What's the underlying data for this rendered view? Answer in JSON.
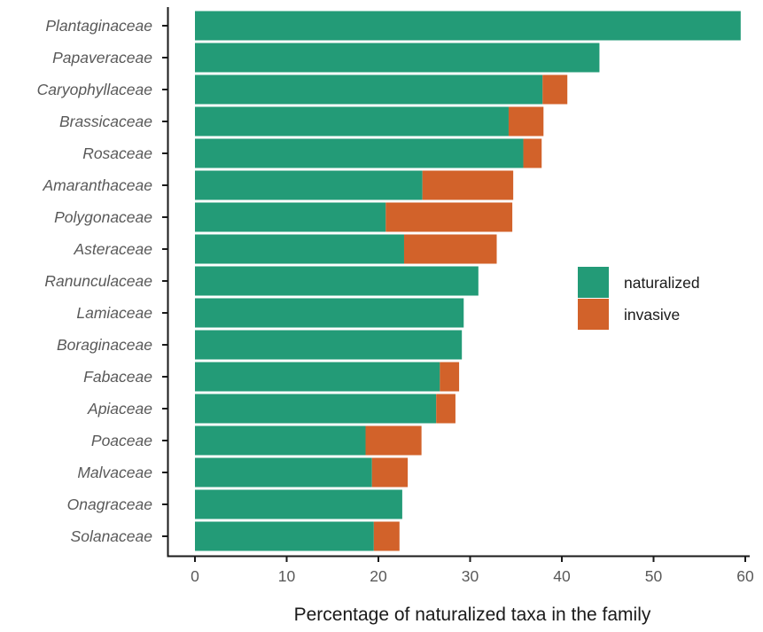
{
  "chart_data": {
    "type": "bar",
    "orientation": "horizontal",
    "stacked": true,
    "categories": [
      "Plantaginaceae",
      "Papaveraceae",
      "Caryophyllaceae",
      "Brassicaceae",
      "Rosaceae",
      "Amaranthaceae",
      "Polygonaceae",
      "Asteraceae",
      "Ranunculaceae",
      "Lamiaceae",
      "Boraginaceae",
      "Fabaceae",
      "Apiaceae",
      "Poaceae",
      "Malvaceae",
      "Onagraceae",
      "Solanaceae"
    ],
    "series": [
      {
        "name": "naturalized",
        "color": "#239b77",
        "values": [
          59.5,
          44.1,
          37.9,
          34.2,
          35.8,
          24.8,
          20.8,
          22.8,
          30.9,
          29.3,
          29.1,
          26.7,
          26.3,
          18.6,
          19.3,
          22.6,
          19.5
        ]
      },
      {
        "name": "invasive",
        "color": "#d2622a",
        "values": [
          0,
          0,
          2.7,
          3.8,
          2.0,
          9.9,
          13.8,
          10.1,
          0,
          0,
          0,
          2.1,
          2.1,
          6.1,
          3.9,
          0,
          2.8
        ]
      }
    ],
    "xlabel": "Percentage of naturalized taxa in the family",
    "ylabel": "",
    "xlim": [
      0,
      60
    ],
    "xticks": [
      0,
      10,
      20,
      30,
      40,
      50,
      60
    ],
    "grid": false,
    "legend_position": "right"
  }
}
